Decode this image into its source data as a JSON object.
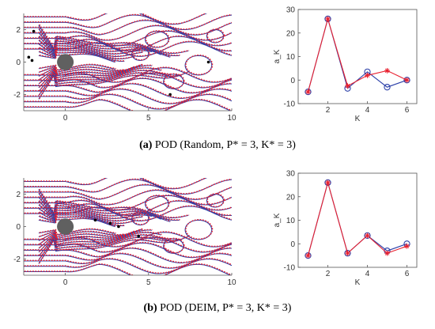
{
  "captions": [
    {
      "label": "(a)",
      "text": "POD (Random, P* = 3, K* = 3)"
    },
    {
      "label": "(b)",
      "text": "POD (DEIM, P* = 3, K* = 3)"
    }
  ],
  "colors": {
    "blue": "#2b3fa8",
    "red": "#e8202f",
    "cylinder": "#606060"
  },
  "chart_data": [
    {
      "type": "contour",
      "panel": "a",
      "xlim": [
        -2.5,
        10
      ],
      "ylim": [
        -3,
        3
      ],
      "xticks": [
        "0",
        "5",
        "10"
      ],
      "yticks": [
        "2",
        "0",
        "-2"
      ],
      "cylinder": {
        "x": 0,
        "y": 0,
        "r": 0.5
      },
      "series": [
        {
          "style": "solid blue"
        },
        {
          "style": "dotted red"
        }
      ],
      "sensors": [
        [
          -1.9,
          1.9
        ],
        [
          -2.2,
          0.3
        ],
        [
          -2.0,
          0.1
        ],
        [
          8.6,
          0.0
        ],
        [
          6.3,
          -2.0
        ]
      ]
    },
    {
      "type": "line",
      "panel": "a",
      "xlabel": "K",
      "ylabel": "a_K",
      "xlim": [
        0.5,
        6.5
      ],
      "ylim": [
        -10,
        30
      ],
      "xticks": [
        "2",
        "4",
        "6"
      ],
      "yticks": [
        "30",
        "20",
        "10",
        "0",
        "-10"
      ],
      "x": [
        1,
        2,
        3,
        4,
        5,
        6
      ],
      "series": [
        {
          "marker": "circle",
          "color": "blue",
          "values": [
            -5,
            26,
            -3.5,
            3.5,
            -3,
            0
          ]
        },
        {
          "marker": "asterisk",
          "color": "red",
          "values": [
            -5,
            26,
            -2.5,
            2,
            4,
            0
          ]
        }
      ]
    },
    {
      "type": "contour",
      "panel": "b",
      "xlim": [
        -2.5,
        10
      ],
      "ylim": [
        -3,
        3
      ],
      "xticks": [
        "0",
        "5",
        "10"
      ],
      "yticks": [
        "2",
        "0",
        "-2"
      ],
      "cylinder": {
        "x": 0,
        "y": 0,
        "r": 0.5
      },
      "series": [
        {
          "style": "solid blue"
        },
        {
          "style": "dotted red"
        }
      ],
      "sensors": [
        [
          1.8,
          0.4
        ],
        [
          2.7,
          0.2
        ],
        [
          3.2,
          0.0
        ],
        [
          4.4,
          -0.6
        ]
      ]
    },
    {
      "type": "line",
      "panel": "b",
      "xlabel": "K",
      "ylabel": "a_K",
      "xlim": [
        0.5,
        6.5
      ],
      "ylim": [
        -10,
        30
      ],
      "xticks": [
        "2",
        "4",
        "6"
      ],
      "yticks": [
        "30",
        "20",
        "10",
        "0",
        "-10"
      ],
      "x": [
        1,
        2,
        3,
        4,
        5,
        6
      ],
      "series": [
        {
          "marker": "circle",
          "color": "blue",
          "values": [
            -5,
            26,
            -4,
            3.5,
            -3,
            0
          ]
        },
        {
          "marker": "asterisk",
          "color": "red",
          "values": [
            -5,
            26,
            -4,
            3.5,
            -4,
            -1
          ]
        }
      ]
    }
  ]
}
